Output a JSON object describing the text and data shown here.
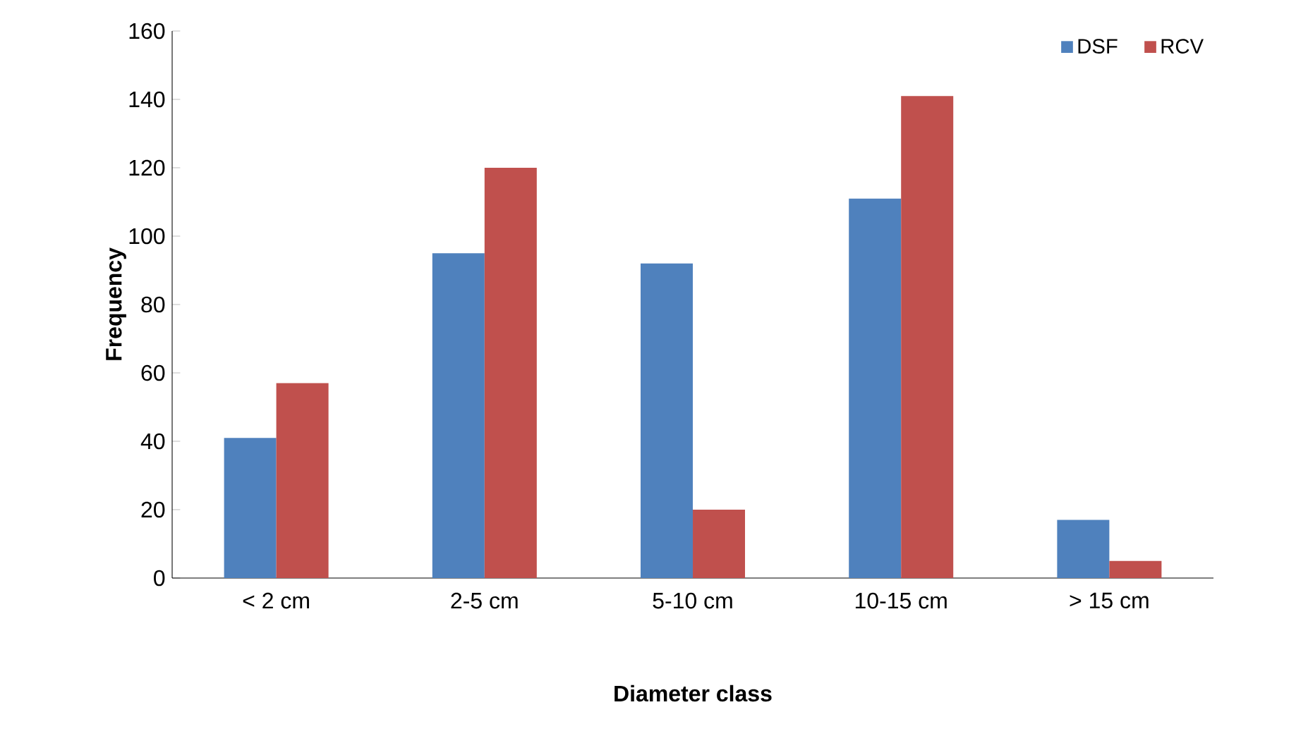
{
  "chart_data": {
    "type": "bar",
    "xlabel": "Diameter class",
    "ylabel": "Frequency",
    "categories": [
      "< 2 cm",
      "2-5 cm",
      "5-10 cm",
      "10-15 cm",
      "> 15 cm"
    ],
    "series": [
      {
        "name": "DSF",
        "color": "#4f81bd",
        "values": [
          41,
          95,
          92,
          111,
          17
        ]
      },
      {
        "name": "RCV",
        "color": "#c0504d",
        "values": [
          57,
          120,
          20,
          141,
          5
        ]
      }
    ],
    "ylim": [
      0,
      160
    ],
    "yticks": [
      0,
      20,
      40,
      60,
      80,
      100,
      120,
      140,
      160
    ],
    "legend": "top right"
  }
}
